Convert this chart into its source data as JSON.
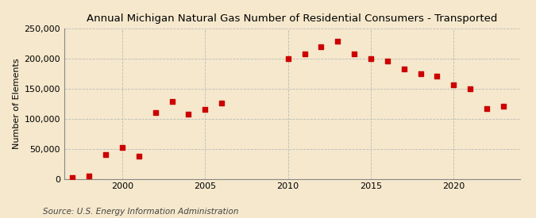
{
  "title": "Annual Michigan Natural Gas Number of Residential Consumers - Transported",
  "ylabel": "Number of Elements",
  "source": "Source: U.S. Energy Information Administration",
  "background_color": "#f5e8cc",
  "plot_background_color": "#f5e8cc",
  "marker_color": "#cc0000",
  "marker_size": 18,
  "ylim": [
    0,
    250000
  ],
  "yticks": [
    0,
    50000,
    100000,
    150000,
    200000,
    250000
  ],
  "xlim": [
    1996.5,
    2024
  ],
  "xticks": [
    2000,
    2005,
    2010,
    2015,
    2020
  ],
  "years": [
    1997,
    1998,
    1999,
    2000,
    2001,
    2002,
    2003,
    2004,
    2005,
    2006,
    2010,
    2011,
    2012,
    2013,
    2014,
    2015,
    2016,
    2017,
    2018,
    2019,
    2020,
    2021,
    2022,
    2023
  ],
  "values": [
    2000,
    5000,
    40000,
    52000,
    37000,
    110000,
    128000,
    107000,
    115000,
    126000,
    199000,
    207000,
    220000,
    228000,
    207000,
    199000,
    196000,
    183000,
    175000,
    171000,
    156000,
    150000,
    117000,
    121000
  ],
  "title_fontsize": 9.5,
  "ylabel_fontsize": 8,
  "tick_fontsize": 8,
  "source_fontsize": 7.5
}
